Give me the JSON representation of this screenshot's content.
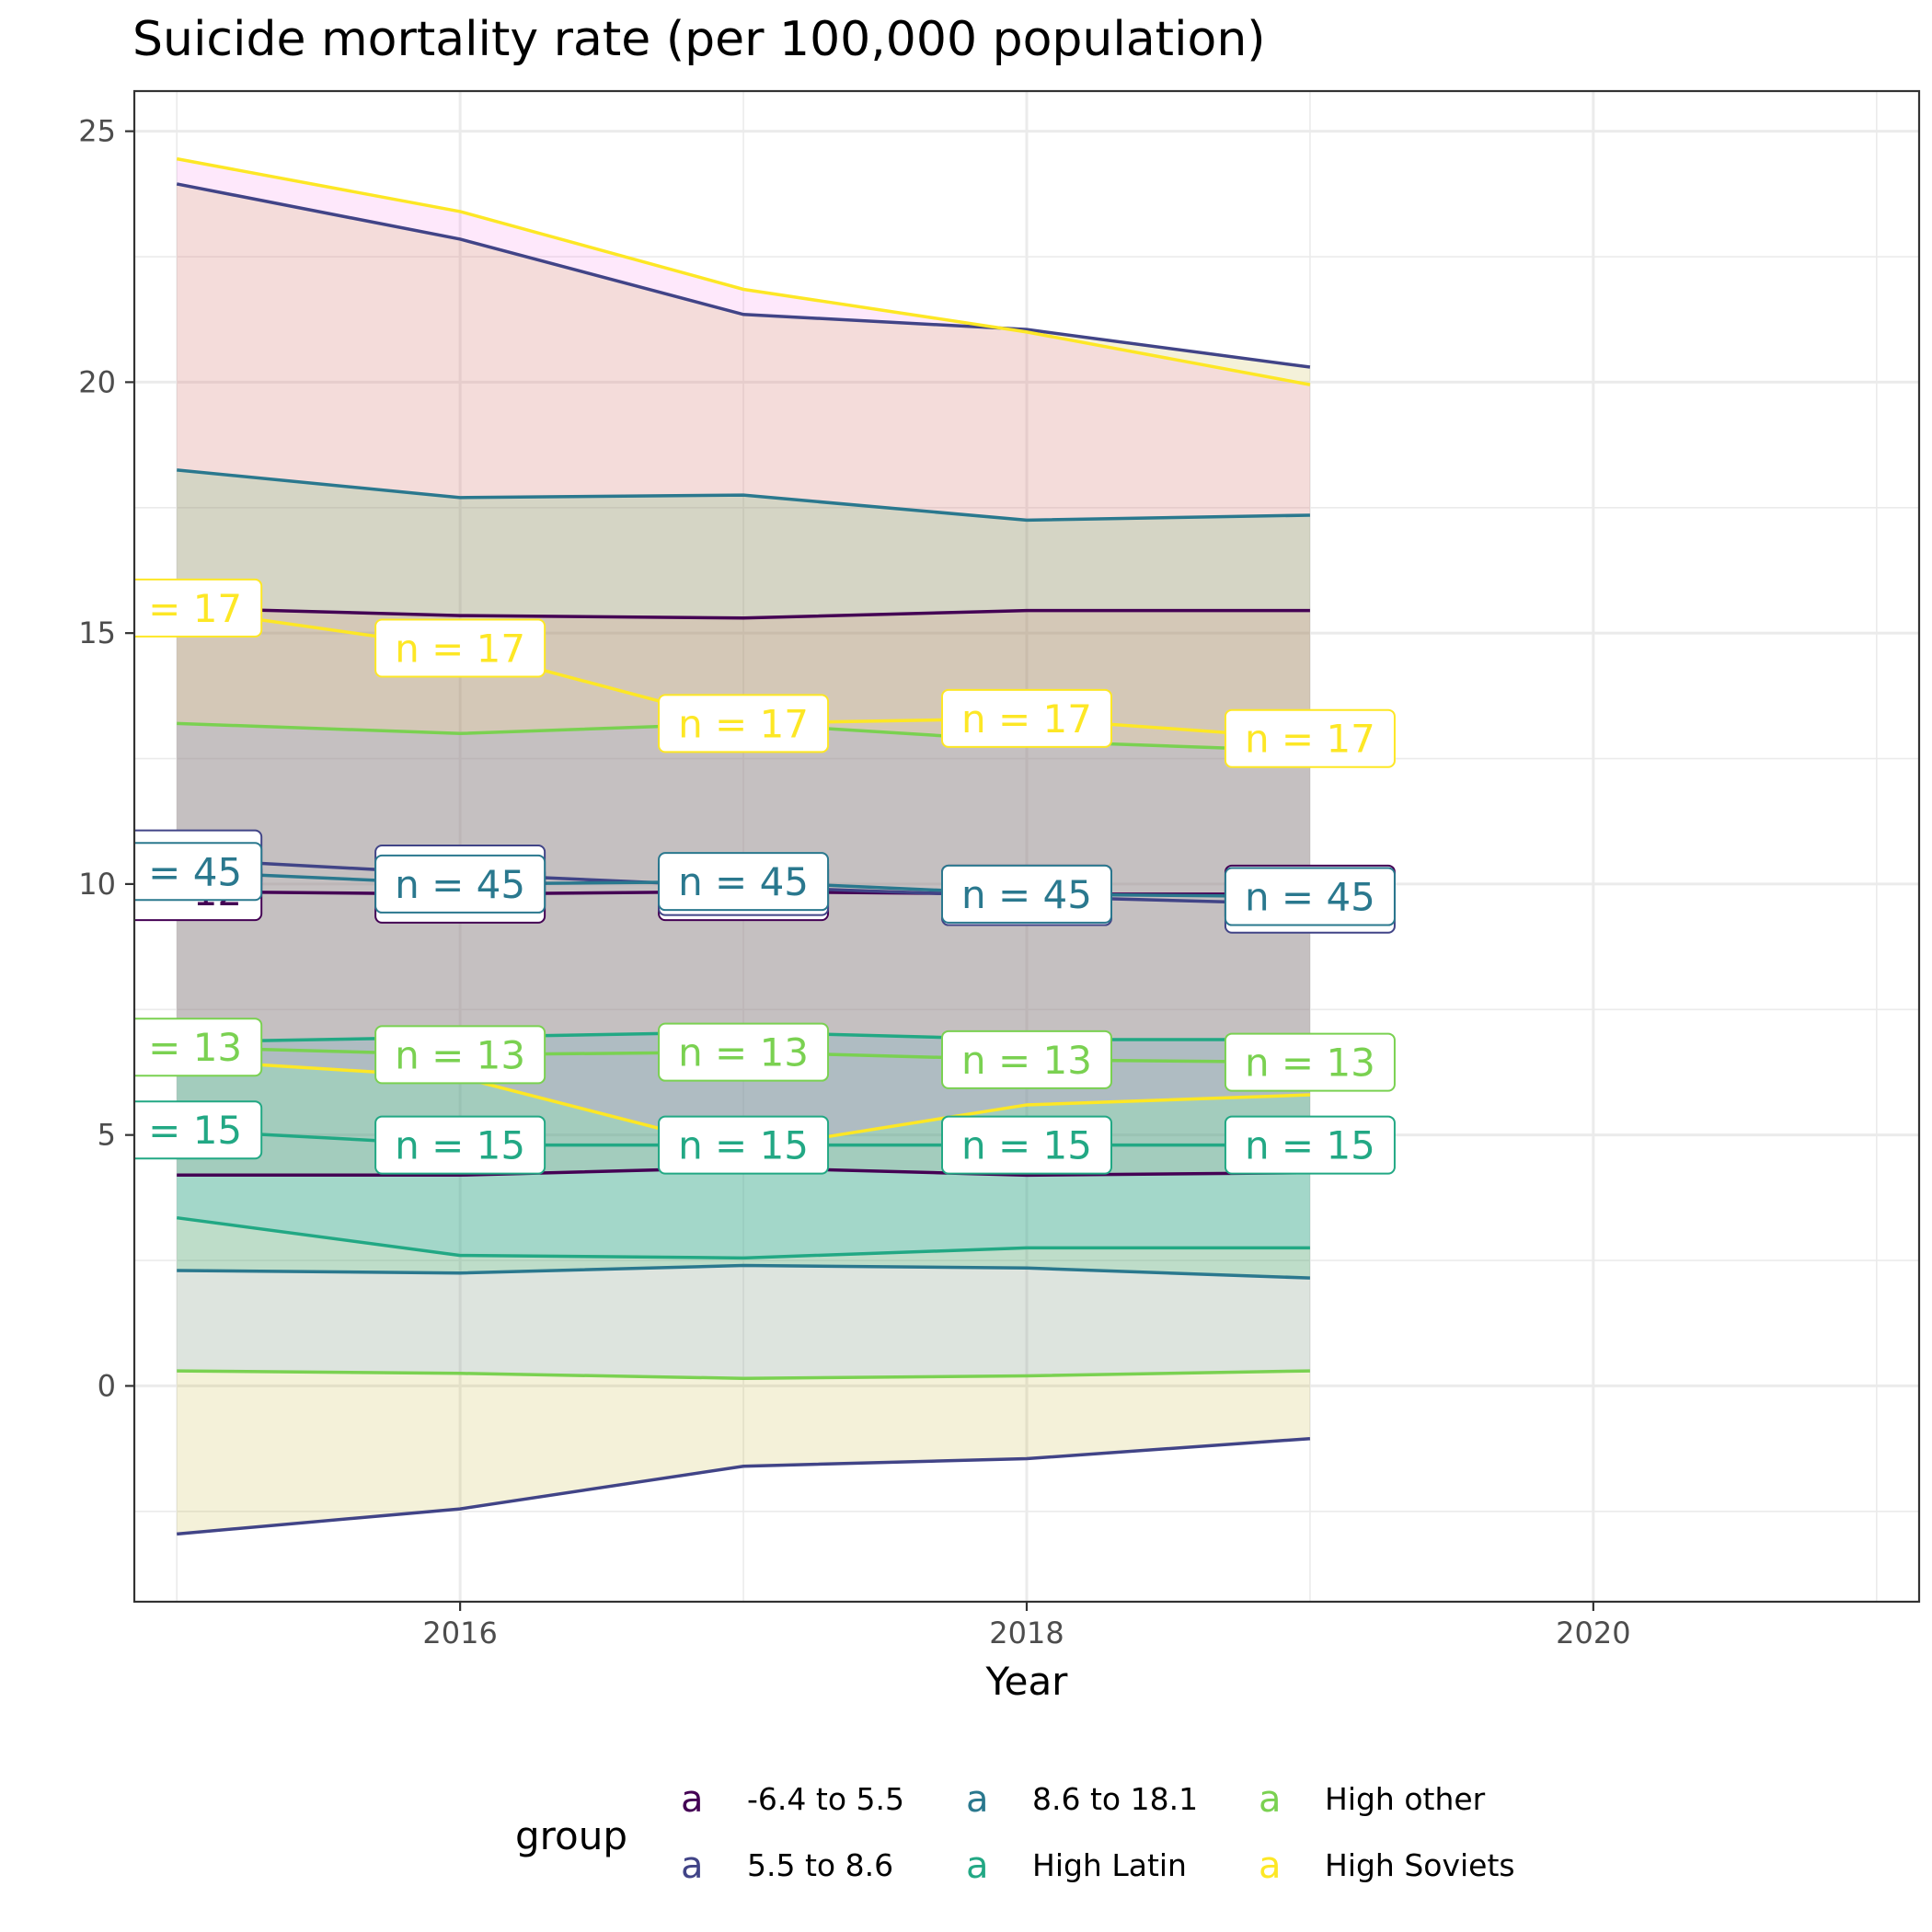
{
  "chart_data": {
    "type": "line",
    "title": "Suicide mortality rate (per 100,000 population)",
    "xlabel": "Year",
    "ylabel": "",
    "xlim": [
      2014.85,
      2021.15
    ],
    "ylim": [
      -4.3,
      25.8
    ],
    "x_ticks": [
      2016,
      2018,
      2020
    ],
    "y_ticks": [
      0,
      5,
      10,
      15,
      20,
      25
    ],
    "x": [
      2015,
      2016,
      2017,
      2018,
      2019
    ],
    "grid": true,
    "legend": {
      "title": "group",
      "position": "bottom",
      "glyph": "a",
      "entries": [
        {
          "label": "-6.4 to 5.5",
          "color": "#440154"
        },
        {
          "label": "5.5 to 8.6",
          "color": "#414487"
        },
        {
          "label": "8.6 to 18.1",
          "color": "#2A788E"
        },
        {
          "label": "High Latin",
          "color": "#22A884"
        },
        {
          "label": "High other",
          "color": "#7AD151"
        },
        {
          "label": "High Soviets",
          "color": "#FDE725"
        }
      ]
    },
    "series": [
      {
        "name": "-6.4 to 5.5",
        "color": "#440154",
        "fill": "#F8766D",
        "n_label": "n = 12",
        "mean": [
          9.85,
          9.8,
          9.85,
          9.8,
          9.8
        ],
        "upper": [
          15.5,
          15.35,
          15.3,
          15.45,
          15.45
        ],
        "lower": [
          4.2,
          4.2,
          4.35,
          4.2,
          4.25
        ]
      },
      {
        "name": "5.5 to 8.6",
        "color": "#414487",
        "fill": "#B79F00",
        "n_label": "n = 45",
        "mean": [
          10.5,
          10.2,
          9.95,
          9.75,
          9.6
        ],
        "upper": [
          23.95,
          22.85,
          21.35,
          21.05,
          20.3
        ],
        "lower": [
          -2.95,
          -2.45,
          -1.6,
          -1.45,
          -1.05
        ]
      },
      {
        "name": "8.6 to 18.1",
        "color": "#2A788E",
        "fill": "#00BA38",
        "n_label": "n = 45",
        "mean": [
          10.25,
          10.0,
          10.05,
          9.8,
          9.75
        ],
        "upper": [
          18.25,
          17.7,
          17.75,
          17.25,
          17.35
        ],
        "lower": [
          2.3,
          2.25,
          2.4,
          2.35,
          2.15
        ]
      },
      {
        "name": "High Latin",
        "color": "#22A884",
        "fill": "#00BFC4",
        "n_label": "n = 15",
        "mean": [
          5.1,
          4.8,
          4.8,
          4.8,
          4.8
        ],
        "upper": [
          6.85,
          6.95,
          7.05,
          6.9,
          6.9
        ],
        "lower": [
          3.35,
          2.6,
          2.55,
          2.75,
          2.75
        ]
      },
      {
        "name": "High other",
        "color": "#7AD151",
        "fill": "#619CFF",
        "n_label": "n = 13",
        "mean": [
          6.75,
          6.6,
          6.65,
          6.5,
          6.45
        ],
        "upper": [
          13.2,
          13.0,
          13.2,
          12.85,
          12.65
        ],
        "lower": [
          0.3,
          0.25,
          0.15,
          0.2,
          0.3
        ]
      },
      {
        "name": "High Soviets",
        "color": "#FDE725",
        "fill": "#F564E3",
        "n_label": "n = 17",
        "mean": [
          15.5,
          14.7,
          13.2,
          13.3,
          12.9
        ],
        "upper": [
          24.45,
          23.4,
          21.85,
          21.0,
          19.95
        ],
        "lower": [
          6.5,
          6.15,
          4.7,
          5.6,
          5.8
        ]
      }
    ]
  }
}
